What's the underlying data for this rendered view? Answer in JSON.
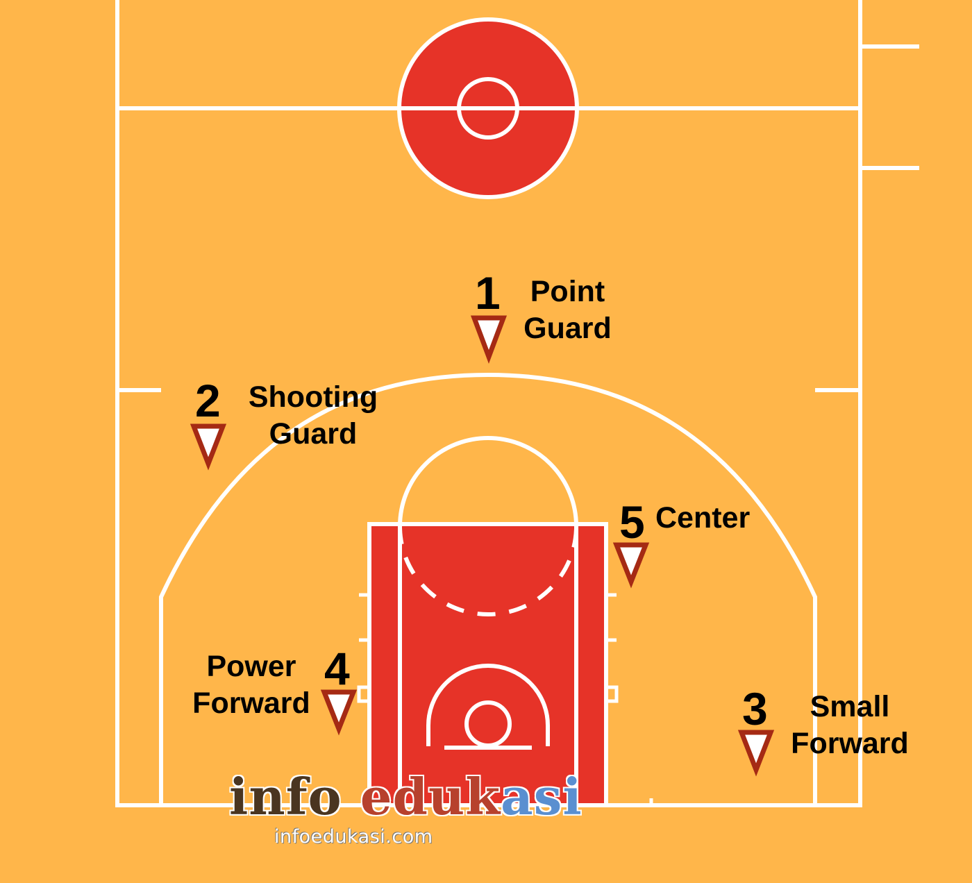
{
  "colors": {
    "court": "#FFB64A",
    "paint": "#E63328",
    "line": "#FFFFFF",
    "marker_fill": "#FFFFFF",
    "marker_stroke": "#A52A14",
    "text": "#000000"
  },
  "positions": [
    {
      "number": "1",
      "label_line1": "Point",
      "label_line2": "Guard"
    },
    {
      "number": "2",
      "label_line1": "Shooting",
      "label_line2": "Guard"
    },
    {
      "number": "3",
      "label_line1": "Small",
      "label_line2": "Forward"
    },
    {
      "number": "4",
      "label_line1": "Power",
      "label_line2": "Forward"
    },
    {
      "number": "5",
      "label_line1": "Center",
      "label_line2": ""
    }
  ],
  "watermark": {
    "logo_part1": "info ",
    "logo_part2": "eduk",
    "logo_part3": "asi",
    "url": "infoedukasi.com"
  }
}
